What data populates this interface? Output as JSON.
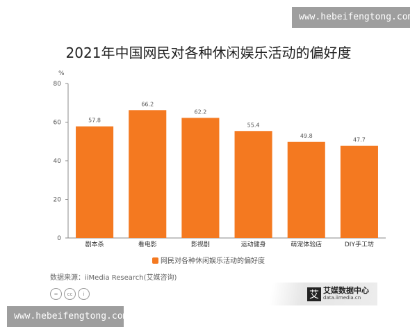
{
  "watermark": "www.hebeifengtong.com",
  "chart_data": {
    "type": "bar",
    "title": "2021年中国网民对各种休闲娱乐活动的偏好度",
    "ylabel": "%",
    "xlabel": "",
    "ylim": [
      0,
      80
    ],
    "yticks": [
      0,
      20,
      40,
      60,
      80
    ],
    "categories": [
      "剧本杀",
      "看电影",
      "影视剧",
      "运动健身",
      "萌宠体验店",
      "DIY手工坊"
    ],
    "series": [
      {
        "name": "网民对各种休闲娱乐活动的偏好度",
        "values": [
          57.8,
          66.2,
          62.2,
          55.4,
          49.8,
          47.7
        ]
      }
    ],
    "color": "#f47920",
    "grid": false,
    "legend": "bottom"
  },
  "source": "数据来源：iiMedia Research(艾媒咨询)",
  "license_icons": [
    "=",
    "cc",
    "i"
  ],
  "logo": {
    "mark": "艾",
    "name": "艾媒数据中心",
    "url": "data.iimedia.cn"
  }
}
